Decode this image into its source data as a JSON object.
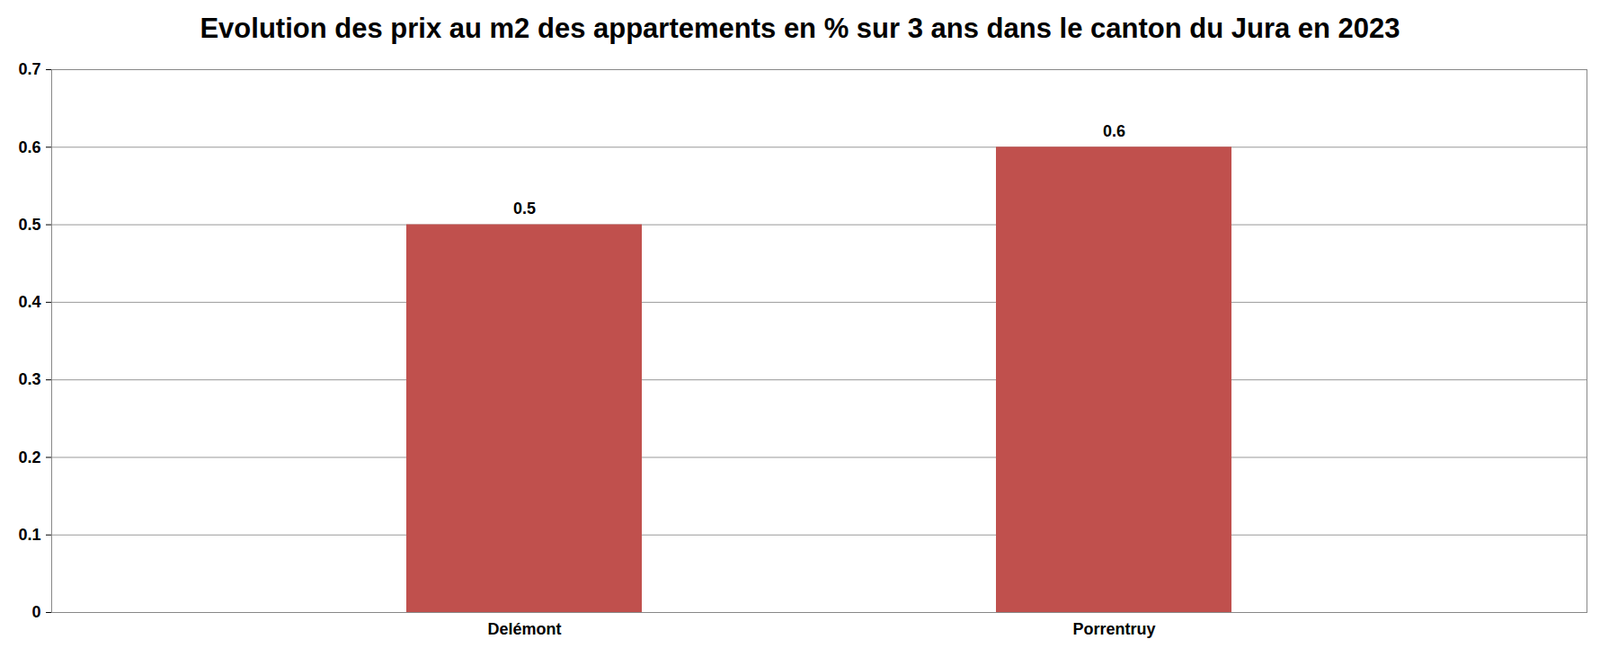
{
  "chart_data": {
    "type": "bar",
    "title": "Evolution des prix au m2 des appartements en % sur 3 ans dans le canton du Jura en 2023",
    "categories": [
      "Delémont",
      "Porrentruy"
    ],
    "values": [
      0.5,
      0.6
    ],
    "color": "#c0504d",
    "ylim": [
      0,
      0.7
    ],
    "yticks": [
      0,
      0.1,
      0.2,
      0.3,
      0.4,
      0.5,
      0.6,
      0.7
    ],
    "grid": true,
    "data_labels": true
  }
}
